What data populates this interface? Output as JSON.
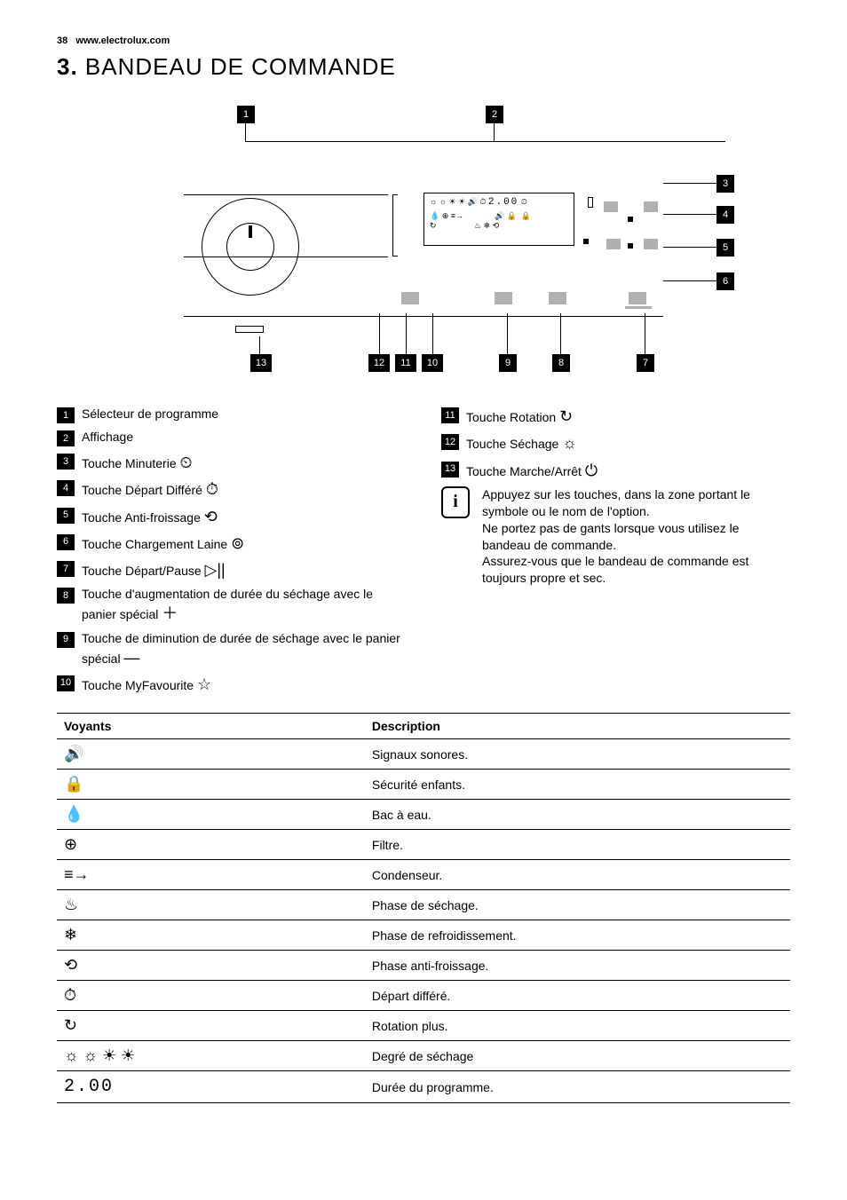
{
  "header": {
    "page_number": "38",
    "site": "www.electrolux.com"
  },
  "section": {
    "number": "3.",
    "title": "BANDEAU DE COMMANDE"
  },
  "diagram": {
    "callouts_top": [
      "1",
      "2"
    ],
    "callouts_right": [
      "3",
      "4",
      "5",
      "6"
    ],
    "callouts_bottom": [
      "13",
      "12",
      "11",
      "10",
      "9",
      "8",
      "7"
    ],
    "display_text": "2.00"
  },
  "legend_left": [
    {
      "n": "1",
      "text": "Sélecteur de programme",
      "icon": ""
    },
    {
      "n": "2",
      "text": "Affichage",
      "icon": ""
    },
    {
      "n": "3",
      "text": "Touche Minuterie",
      "icon": "⏲"
    },
    {
      "n": "4",
      "text": "Touche Départ Différé",
      "icon": "⏱"
    },
    {
      "n": "5",
      "text": "Touche Anti-froissage",
      "icon": "⟲"
    },
    {
      "n": "6",
      "text": "Touche Chargement Laine",
      "icon": "⊚"
    },
    {
      "n": "7",
      "text": "Touche Départ/Pause",
      "icon": "▷||"
    },
    {
      "n": "8",
      "text": "Touche d'augmentation de durée du séchage avec le panier spécial",
      "icon": "＋"
    },
    {
      "n": "9",
      "text": "Touche de diminution de durée de séchage avec le panier spécial",
      "icon": "—"
    },
    {
      "n": "10",
      "text": "Touche MyFavourite",
      "icon": "☆"
    }
  ],
  "legend_right": [
    {
      "n": "11",
      "text": "Touche Rotation",
      "icon": "↻"
    },
    {
      "n": "12",
      "text": "Touche Séchage",
      "icon": "☼"
    },
    {
      "n": "13",
      "text": "Touche Marche/Arrêt",
      "icon": "⏻"
    }
  ],
  "info": {
    "text": "Appuyez sur les touches, dans la zone portant le symbole ou le nom de l'option.\nNe portez pas de gants lorsque vous utilisez le bandeau de commande.\nAssurez-vous que le bandeau de commande est toujours propre et sec."
  },
  "table": {
    "headers": [
      "Voyants",
      "Description"
    ],
    "rows": [
      {
        "icon": "🔊",
        "desc": "Signaux sonores."
      },
      {
        "icon": "🔒",
        "desc": "Sécurité enfants."
      },
      {
        "icon": "💧",
        "desc": "Bac à eau."
      },
      {
        "icon": "⊕",
        "desc": "Filtre."
      },
      {
        "icon": "≡→",
        "desc": "Condenseur."
      },
      {
        "icon": "♨",
        "desc": "Phase de séchage."
      },
      {
        "icon": "❄",
        "desc": "Phase de refroidissement."
      },
      {
        "icon": "⟲",
        "desc": "Phase anti-froissage."
      },
      {
        "icon": "⏱",
        "desc": "Départ différé."
      },
      {
        "icon": "↻",
        "desc": "Rotation plus."
      },
      {
        "icon": "☼ ☼ ☀ ☀",
        "desc": "Degré de séchage"
      },
      {
        "icon": "2.00",
        "desc": "Durée du programme.",
        "sevenseg": true
      }
    ]
  },
  "colors": {
    "black": "#000000",
    "white": "#ffffff",
    "grey": "#b0b0b0"
  }
}
